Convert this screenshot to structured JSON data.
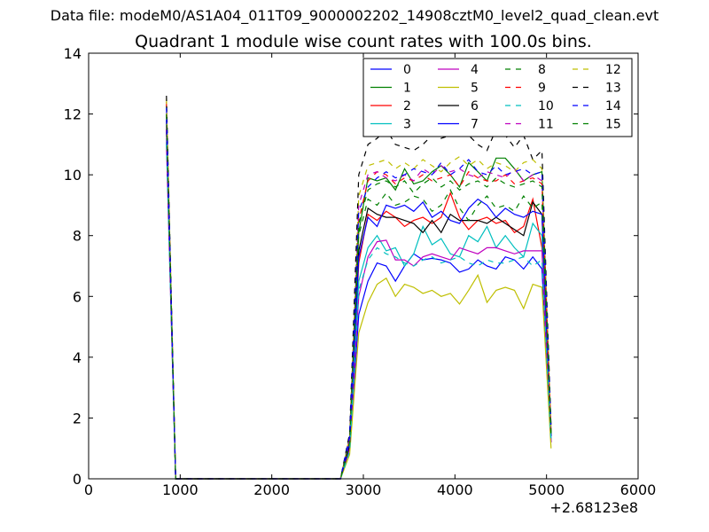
{
  "figure": {
    "suptitle": "Data file: modeM0/AS1A04_011T09_9000002202_14908cztM0_level2_quad_clean.evt"
  },
  "chart_data": {
    "type": "line",
    "title": "Quadrant 1 module wise count rates with 100.0s bins.",
    "xlabel": "",
    "ylabel": "",
    "x_offset_label": "+2.68123e8",
    "xlim": [
      0,
      6000
    ],
    "ylim": [
      0,
      14
    ],
    "xticks": [
      0,
      1000,
      2000,
      3000,
      4000,
      5000,
      6000
    ],
    "yticks": [
      0,
      2,
      4,
      6,
      8,
      10,
      12,
      14
    ],
    "grid": false,
    "legend": {
      "placement": "top-right",
      "columns": 4
    },
    "x": [
      850,
      950,
      1050,
      1150,
      1250,
      1350,
      1450,
      1550,
      1650,
      1750,
      1850,
      1950,
      2050,
      2150,
      2250,
      2350,
      2450,
      2550,
      2650,
      2750,
      2850,
      2950,
      3050,
      3150,
      3250,
      3350,
      3450,
      3550,
      3650,
      3750,
      3850,
      3950,
      4050,
      4150,
      4250,
      4350,
      4450,
      4550,
      4650,
      4750,
      4850,
      4950,
      5050
    ],
    "series": [
      {
        "name": "0",
        "color": "#0000ff",
        "dash": "solid",
        "values": [
          12.0,
          0,
          0,
          0,
          0,
          0,
          0,
          0,
          0,
          0,
          0,
          0,
          0,
          0,
          0,
          0,
          0,
          0,
          0,
          0,
          1.0,
          5.4,
          6.5,
          7.1,
          7.0,
          6.5,
          7.0,
          7.4,
          7.2,
          7.25,
          7.2,
          7.1,
          6.8,
          6.9,
          7.2,
          7.0,
          6.9,
          7.3,
          7.2,
          6.9,
          7.3,
          6.9,
          1.2
        ]
      },
      {
        "name": "1",
        "color": "#008000",
        "dash": "solid",
        "values": [
          11.8,
          0,
          0,
          0,
          0,
          0,
          0,
          0,
          0,
          0,
          0,
          0,
          0,
          0,
          0,
          0,
          0,
          0,
          0,
          0,
          1.2,
          8.1,
          9.9,
          9.8,
          9.9,
          9.5,
          10.2,
          9.7,
          9.8,
          10.1,
          10.3,
          10.0,
          9.6,
          10.4,
          10.1,
          9.8,
          10.55,
          10.55,
          10.2,
          9.8,
          10.0,
          10.1,
          1.5
        ]
      },
      {
        "name": "2",
        "color": "#ff0000",
        "dash": "solid",
        "values": [
          11.5,
          0,
          0,
          0,
          0,
          0,
          0,
          0,
          0,
          0,
          0,
          0,
          0,
          0,
          0,
          0,
          0,
          0,
          0,
          0,
          1.1,
          7.1,
          8.7,
          8.5,
          8.8,
          8.6,
          8.3,
          8.5,
          8.6,
          8.4,
          8.6,
          9.4,
          8.6,
          8.2,
          8.5,
          8.6,
          8.4,
          8.5,
          8.1,
          8.3,
          9.2,
          7.6,
          1.4
        ]
      },
      {
        "name": "3",
        "color": "#00bfbf",
        "dash": "solid",
        "values": [
          11.2,
          0,
          0,
          0,
          0,
          0,
          0,
          0,
          0,
          0,
          0,
          0,
          0,
          0,
          0,
          0,
          0,
          0,
          0,
          0,
          1.0,
          6.5,
          7.6,
          8.0,
          7.5,
          7.6,
          7.0,
          7.4,
          8.3,
          7.7,
          7.9,
          7.4,
          7.3,
          8.0,
          7.8,
          8.3,
          7.6,
          8.0,
          7.6,
          7.3,
          8.4,
          8.0,
          1.3
        ]
      },
      {
        "name": "4",
        "color": "#bf00bf",
        "dash": "solid",
        "values": [
          11.0,
          0,
          0,
          0,
          0,
          0,
          0,
          0,
          0,
          0,
          0,
          0,
          0,
          0,
          0,
          0,
          0,
          0,
          0,
          0,
          1.0,
          6.0,
          7.3,
          7.8,
          7.85,
          7.2,
          7.2,
          7.0,
          7.3,
          7.4,
          7.3,
          7.2,
          7.6,
          7.5,
          7.4,
          7.6,
          7.6,
          7.5,
          7.4,
          7.5,
          7.5,
          7.5,
          1.2
        ]
      },
      {
        "name": "5",
        "color": "#bfbf00",
        "dash": "solid",
        "values": [
          12.0,
          0,
          0,
          0,
          0,
          0,
          0,
          0,
          0,
          0,
          0,
          0,
          0,
          0,
          0,
          0,
          0,
          0,
          0,
          0,
          0.8,
          4.8,
          5.8,
          6.4,
          6.6,
          6.0,
          6.4,
          6.3,
          6.1,
          6.2,
          6.0,
          6.1,
          5.75,
          6.2,
          6.7,
          5.8,
          6.2,
          6.3,
          6.2,
          5.6,
          6.4,
          6.3,
          1.0
        ]
      },
      {
        "name": "6",
        "color": "#000000",
        "dash": "solid",
        "values": [
          11.5,
          0,
          0,
          0,
          0,
          0,
          0,
          0,
          0,
          0,
          0,
          0,
          0,
          0,
          0,
          0,
          0,
          0,
          0,
          0,
          1.1,
          7.5,
          8.9,
          8.7,
          8.6,
          8.6,
          8.5,
          8.4,
          8.1,
          8.5,
          8.1,
          8.7,
          8.5,
          8.5,
          8.5,
          8.4,
          8.6,
          8.4,
          8.2,
          8.0,
          9.1,
          8.7,
          1.4
        ]
      },
      {
        "name": "7",
        "color": "#0000ff",
        "dash": "solid",
        "values": [
          11.8,
          0,
          0,
          0,
          0,
          0,
          0,
          0,
          0,
          0,
          0,
          0,
          0,
          0,
          0,
          0,
          0,
          0,
          0,
          0,
          1.2,
          7.3,
          8.6,
          8.3,
          9.0,
          8.9,
          9.0,
          8.8,
          9.1,
          8.6,
          8.8,
          8.5,
          8.4,
          8.9,
          9.2,
          9.0,
          8.6,
          8.9,
          8.7,
          8.6,
          8.8,
          8.7,
          1.4
        ]
      },
      {
        "name": "8",
        "color": "#008000",
        "dash": "dashed",
        "values": [
          12.3,
          0,
          0,
          0,
          0,
          0,
          0,
          0,
          0,
          0,
          0,
          0,
          0,
          0,
          0,
          0,
          0,
          0,
          0,
          0,
          1.4,
          8.0,
          9.2,
          9.0,
          9.4,
          9.0,
          9.1,
          9.3,
          9.2,
          8.8,
          9.0,
          9.5,
          8.9,
          8.5,
          9.0,
          9.3,
          8.9,
          9.0,
          8.8,
          9.3,
          8.9,
          9.1,
          1.5
        ]
      },
      {
        "name": "9",
        "color": "#ff0000",
        "dash": "dashed",
        "values": [
          12.4,
          0,
          0,
          0,
          0,
          0,
          0,
          0,
          0,
          0,
          0,
          0,
          0,
          0,
          0,
          0,
          0,
          0,
          0,
          0,
          1.3,
          8.5,
          9.8,
          10.1,
          10.0,
          9.7,
          9.9,
          9.8,
          10.0,
          9.8,
          9.9,
          10.0,
          9.6,
          10.1,
          9.9,
          9.8,
          9.8,
          10.0,
          9.7,
          9.8,
          9.9,
          9.7,
          1.5
        ]
      },
      {
        "name": "10",
        "color": "#00bfbf",
        "dash": "dashed",
        "values": [
          11.0,
          0,
          0,
          0,
          0,
          0,
          0,
          0,
          0,
          0,
          0,
          0,
          0,
          0,
          0,
          0,
          0,
          0,
          0,
          0,
          0.9,
          6.2,
          7.2,
          7.6,
          7.4,
          7.3,
          7.1,
          7.0,
          7.2,
          7.3,
          7.1,
          7.2,
          7.3,
          7.1,
          7.0,
          7.2,
          7.1,
          7.1,
          7.2,
          7.3,
          7.0,
          7.2,
          1.2
        ]
      },
      {
        "name": "11",
        "color": "#bf00bf",
        "dash": "dashed",
        "values": [
          11.6,
          0,
          0,
          0,
          0,
          0,
          0,
          0,
          0,
          0,
          0,
          0,
          0,
          0,
          0,
          0,
          0,
          0,
          0,
          0,
          1.3,
          9.0,
          10.0,
          10.1,
          9.9,
          9.8,
          10.0,
          9.8,
          10.2,
          10.0,
          10.3,
          10.1,
          10.2,
          10.0,
          9.9,
          10.1,
          10.0,
          9.9,
          10.2,
          9.8,
          10.0,
          9.8,
          1.6
        ]
      },
      {
        "name": "12",
        "color": "#bfbf00",
        "dash": "dashed",
        "values": [
          12.5,
          0,
          0,
          0,
          0,
          0,
          0,
          0,
          0,
          0,
          0,
          0,
          0,
          0,
          0,
          0,
          0,
          0,
          0,
          0,
          1.4,
          9.3,
          10.3,
          10.4,
          10.5,
          10.2,
          10.4,
          10.2,
          10.5,
          10.3,
          10.1,
          10.4,
          10.6,
          10.3,
          10.5,
          10.2,
          10.4,
          10.3,
          10.1,
          10.4,
          10.5,
          10.2,
          1.6
        ]
      },
      {
        "name": "13",
        "color": "#000000",
        "dash": "dashed",
        "values": [
          12.6,
          0,
          0,
          0,
          0,
          0,
          0,
          0,
          0,
          0,
          0,
          0,
          0,
          0,
          0,
          0,
          0,
          0,
          0,
          0,
          1.5,
          10.0,
          11.0,
          11.2,
          11.5,
          11.0,
          10.9,
          10.8,
          11.0,
          11.3,
          11.2,
          11.3,
          11.4,
          11.3,
          11.0,
          10.8,
          11.5,
          11.3,
          10.9,
          11.3,
          10.5,
          10.8,
          1.7
        ]
      },
      {
        "name": "14",
        "color": "#0000ff",
        "dash": "dashed",
        "values": [
          12.2,
          0,
          0,
          0,
          0,
          0,
          0,
          0,
          0,
          0,
          0,
          0,
          0,
          0,
          0,
          0,
          0,
          0,
          0,
          0,
          1.4,
          8.8,
          9.6,
          9.9,
          10.1,
          9.9,
          10.0,
          10.2,
          10.1,
          10.0,
          10.4,
          10.0,
          10.2,
          10.5,
          10.1,
          10.0,
          10.3,
          10.0,
          10.1,
          10.2,
          10.0,
          10.1,
          1.6
        ]
      },
      {
        "name": "15",
        "color": "#008000",
        "dash": "dashed",
        "values": [
          12.0,
          0,
          0,
          0,
          0,
          0,
          0,
          0,
          0,
          0,
          0,
          0,
          0,
          0,
          0,
          0,
          0,
          0,
          0,
          0,
          1.2,
          8.4,
          9.5,
          9.7,
          9.8,
          9.6,
          9.8,
          9.4,
          9.7,
          9.9,
          9.6,
          9.8,
          9.5,
          9.7,
          9.8,
          9.6,
          9.9,
          9.7,
          9.6,
          9.7,
          9.8,
          9.6,
          1.5
        ]
      }
    ]
  }
}
